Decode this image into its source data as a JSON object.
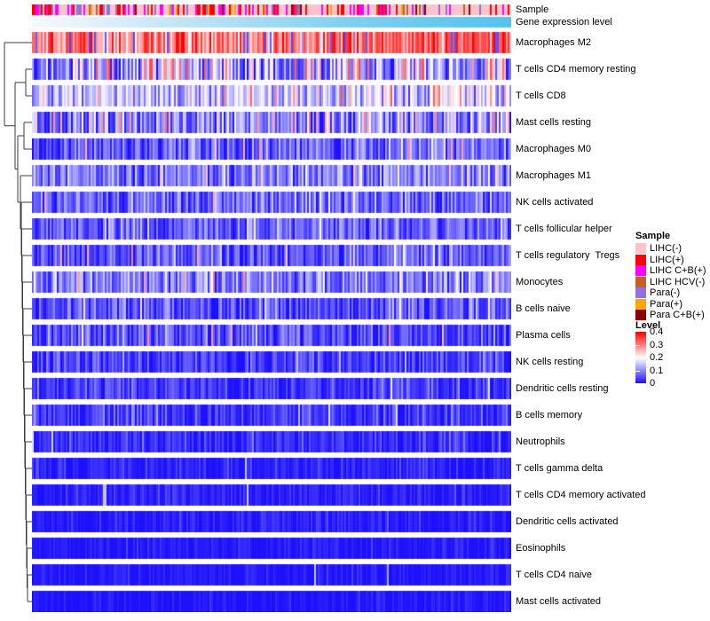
{
  "annotations": {
    "sample_label": "Sample",
    "gene_expression_label": "Gene expression level",
    "gene_expression_gradient": [
      "#F7FAFE",
      "#BEE4F6",
      "#7FD0F0",
      "#54C3EF"
    ]
  },
  "heatmap": {
    "n_columns": 270,
    "seed": 11,
    "colormap": {
      "low": "#1C10FD",
      "mid": "#FFFFFF",
      "high": "#FF0000",
      "low_value": 0,
      "mid_value": 0.18,
      "high_value": 0.42
    },
    "sample_bar_colors": {
      "pink": "#FFC3CC",
      "red": "#FF0000",
      "magenta": "#FF00FF",
      "chocolate": "#C5601F",
      "purple": "#9370DB",
      "orange": "#FFA500",
      "darkred": "#8B0000"
    },
    "sample_bar_weights": {
      "pink": [
        0.4,
        0.62
      ],
      "red": [
        0.13,
        0.16
      ],
      "magenta": [
        0.12,
        0.14
      ],
      "chocolate": [
        0.035,
        0.035
      ],
      "purple": [
        0.15,
        0.02
      ],
      "orange": [
        0.085,
        0.015
      ],
      "darkred": [
        0.02,
        0.02
      ]
    },
    "rows": [
      {
        "label": "Macrophages M2",
        "mean": 0.3,
        "sd": 0.065,
        "trend": 0.05,
        "p_hi": 0.03,
        "hi": 0.43,
        "p_lo": 0.07,
        "lo": 0.04
      },
      {
        "label": "T cells CD4 memory resting",
        "mean": 0.12,
        "sd": 0.075,
        "trend": 0.04,
        "p_hi": 0.08,
        "hi": 0.31,
        "p_lo": 0.1,
        "lo": 0.03
      },
      {
        "label": "T cells CD8",
        "mean": 0.15,
        "sd": 0.05,
        "trend": 0.02,
        "p_hi": 0.05,
        "hi": 0.3,
        "p_lo": 0.06,
        "lo": 0.05
      },
      {
        "label": "Mast cells resting",
        "mean": 0.1,
        "sd": 0.06,
        "trend": 0.02,
        "p_hi": 0.05,
        "hi": 0.28,
        "p_lo": 0.12,
        "lo": 0.02
      },
      {
        "label": "Macrophages M0",
        "mean": 0.06,
        "sd": 0.045,
        "trend": 0.03,
        "p_hi": 0.03,
        "hi": 0.26,
        "p_lo": 0.0,
        "lo": 0.0
      },
      {
        "label": "Macrophages M1",
        "mean": 0.085,
        "sd": 0.045,
        "trend": 0.02,
        "p_hi": 0.02,
        "hi": 0.22,
        "p_lo": 0.05,
        "lo": 0.02
      },
      {
        "label": "NK cells activated",
        "mean": 0.07,
        "sd": 0.045,
        "trend": 0.01,
        "p_hi": 0.02,
        "hi": 0.26,
        "p_lo": 0.05,
        "lo": 0.01
      },
      {
        "label": "T cells follicular helper",
        "mean": 0.065,
        "sd": 0.04,
        "trend": 0.01,
        "p_hi": 0.015,
        "hi": 0.22,
        "p_lo": 0.05,
        "lo": 0.01
      },
      {
        "label": "T cells regulatory  Tregs",
        "mean": 0.06,
        "sd": 0.04,
        "trend": 0.01,
        "p_hi": 0.015,
        "hi": 0.26,
        "p_lo": 0.05,
        "lo": 0.01
      },
      {
        "label": "Monocytes",
        "mean": 0.09,
        "sd": 0.05,
        "trend": 0.0,
        "p_hi": 0.03,
        "hi": 0.27,
        "p_lo": 0.08,
        "lo": 0.02
      },
      {
        "label": "B cells naive",
        "mean": 0.05,
        "sd": 0.04,
        "trend": 0.01,
        "p_hi": 0.008,
        "hi": 0.2,
        "p_lo": 0.05,
        "lo": 0.01
      },
      {
        "label": "Plasma cells",
        "mean": 0.045,
        "sd": 0.04,
        "trend": 0.0,
        "p_hi": 0.01,
        "hi": 0.26,
        "p_lo": 0.05,
        "lo": 0.005
      },
      {
        "label": "NK cells resting",
        "mean": 0.032,
        "sd": 0.032,
        "trend": 0.0,
        "p_hi": 0.005,
        "hi": 0.18,
        "p_lo": 0,
        "lo": 0
      },
      {
        "label": "Dendritic cells resting",
        "mean": 0.028,
        "sd": 0.028,
        "trend": 0.0,
        "p_hi": 0.005,
        "hi": 0.15,
        "p_lo": 0,
        "lo": 0
      },
      {
        "label": "B cells memory",
        "mean": 0.028,
        "sd": 0.03,
        "trend": 0.0,
        "p_hi": 0.008,
        "hi": 0.18,
        "p_lo": 0,
        "lo": 0
      },
      {
        "label": "Neutrophils",
        "mean": 0.022,
        "sd": 0.025,
        "trend": 0.0,
        "p_hi": 0.004,
        "hi": 0.15,
        "p_lo": 0,
        "lo": 0
      },
      {
        "label": "T cells gamma delta",
        "mean": 0.013,
        "sd": 0.018,
        "trend": 0.0,
        "p_hi": 0.003,
        "hi": 0.14,
        "p_lo": 0,
        "lo": 0
      },
      {
        "label": "T cells CD4 memory activated",
        "mean": 0.011,
        "sd": 0.016,
        "trend": 0.0,
        "p_hi": 0.003,
        "hi": 0.13,
        "p_lo": 0,
        "lo": 0
      },
      {
        "label": "Dendritic cells activated",
        "mean": 0.009,
        "sd": 0.014,
        "trend": 0.0,
        "p_hi": 0.002,
        "hi": 0.12,
        "p_lo": 0,
        "lo": 0
      },
      {
        "label": "Eosinophils",
        "mean": 0.007,
        "sd": 0.012,
        "trend": 0.0,
        "p_hi": 0.002,
        "hi": 0.12,
        "p_lo": 0,
        "lo": 0
      },
      {
        "label": "T cells CD4 naive",
        "mean": 0.006,
        "sd": 0.011,
        "trend": 0.0,
        "p_hi": 0.003,
        "hi": 0.12,
        "p_lo": 0,
        "lo": 0
      },
      {
        "label": "Mast cells activated",
        "mean": 0.004,
        "sd": 0.009,
        "trend": 0.0,
        "p_hi": 0.003,
        "hi": 0.1,
        "p_lo": 0,
        "lo": 0
      }
    ]
  },
  "legends": {
    "sample": {
      "title": "Sample",
      "items": [
        {
          "label": "LIHC(-)",
          "color": "#FFC3CC"
        },
        {
          "label": "LIHC(+)",
          "color": "#FF0000"
        },
        {
          "label": "LIHC C+B(+)",
          "color": "#FF00FF"
        },
        {
          "label": "LIHC HCV(-)",
          "color": "#C5601F"
        },
        {
          "label": "Para(-)",
          "color": "#9370DB"
        },
        {
          "label": "Para(+)",
          "color": "#FFA500"
        },
        {
          "label": "Para C+B(+)",
          "color": "#8B0000"
        }
      ]
    },
    "level": {
      "title": "Level",
      "ticks": [
        "0.4",
        "0.3",
        "0.2",
        "0.1",
        "0"
      ],
      "tick_values": [
        0.4,
        0.3,
        0.2,
        0.1,
        0
      ]
    }
  },
  "chart_data": {
    "type": "heatmap",
    "title": "",
    "row_labels": [
      "Macrophages M2",
      "T cells CD4 memory resting",
      "T cells CD8",
      "Mast cells resting",
      "Macrophages M0",
      "Macrophages M1",
      "NK cells activated",
      "T cells follicular helper",
      "T cells regulatory  Tregs",
      "Monocytes",
      "B cells naive",
      "Plasma cells",
      "NK cells resting",
      "Dendritic cells resting",
      "B cells memory",
      "Neutrophils",
      "T cells gamma delta",
      "T cells CD4 memory activated",
      "Dendritic cells activated",
      "Eosinophils",
      "T cells CD4 naive",
      "Mast cells activated"
    ],
    "row_mean_level": [
      0.3,
      0.12,
      0.15,
      0.1,
      0.06,
      0.085,
      0.07,
      0.065,
      0.06,
      0.09,
      0.05,
      0.045,
      0.032,
      0.028,
      0.028,
      0.022,
      0.013,
      0.011,
      0.009,
      0.007,
      0.006,
      0.004
    ],
    "columns": {
      "count": 270,
      "individual_labels_shown": false
    },
    "column_annotations": [
      "Sample",
      "Gene expression level"
    ],
    "level_scale": {
      "min": 0,
      "max": 0.4,
      "ticks": [
        0.4,
        0.3,
        0.2,
        0.1,
        0
      ],
      "low_color": "#1C10FD",
      "mid_color": "#FFFFFF",
      "high_color": "#FF0000"
    },
    "sample_groups": [
      "LIHC(-)",
      "LIHC(+)",
      "LIHC C+B(+)",
      "LIHC HCV(-)",
      "Para(-)",
      "Para(+)",
      "Para C+B(+)"
    ],
    "row_dendrogram_shown": true,
    "legend_position": "right"
  }
}
